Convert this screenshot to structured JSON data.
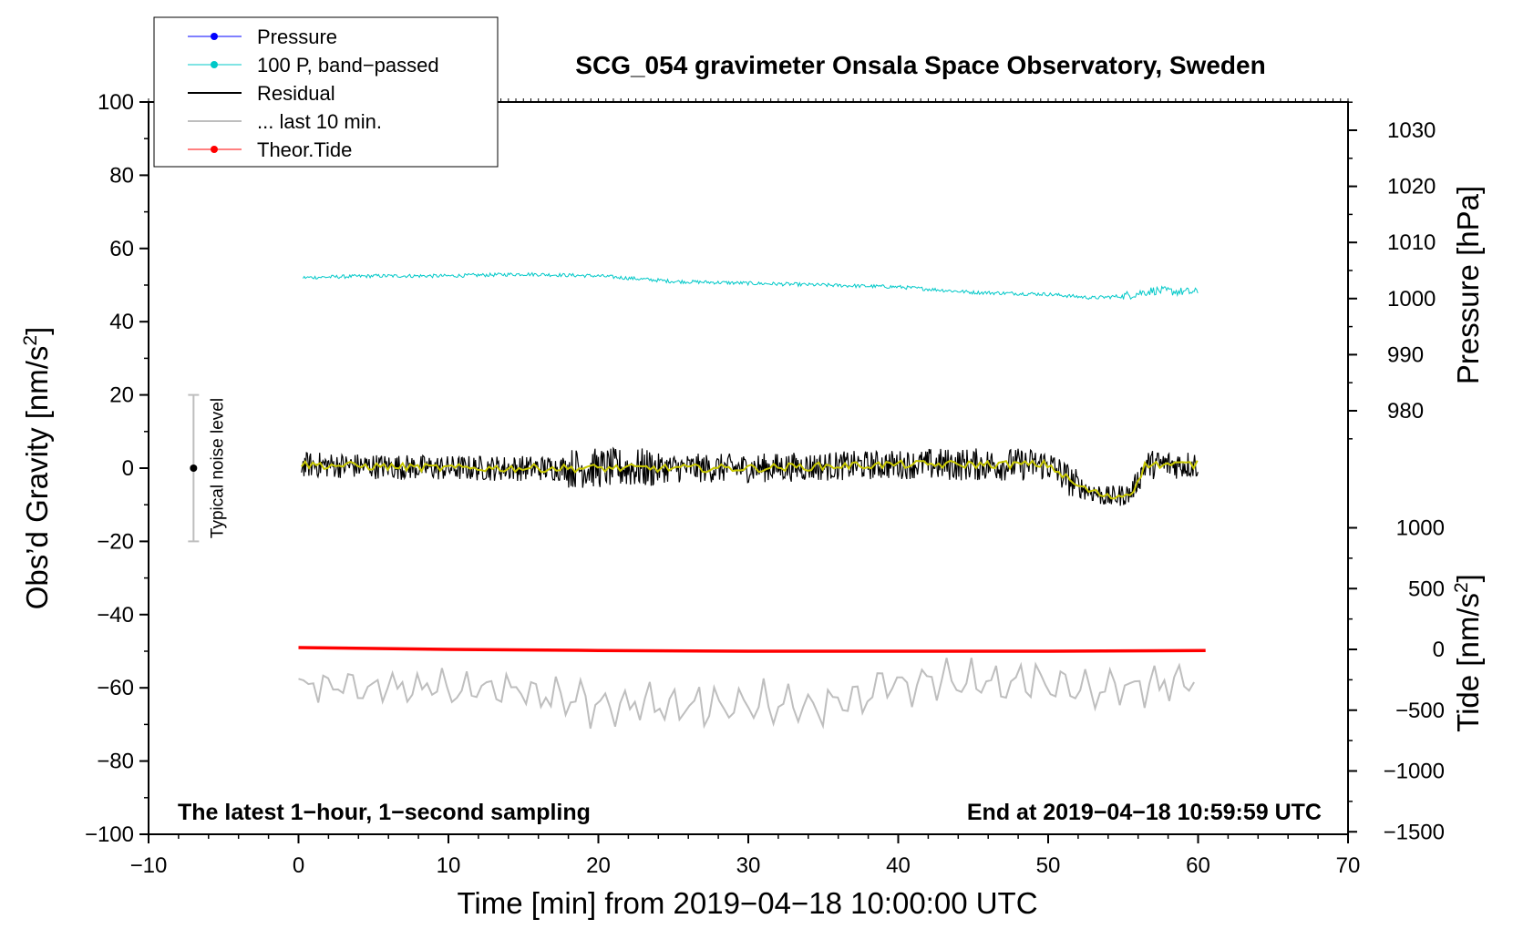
{
  "chart_data": {
    "type": "line",
    "title": "SCG_054 gravimeter Onsala Space Observatory, Sweden",
    "xlabel": "Time [min] from 2019−04−18 10:00:00 UTC",
    "ylabel_left": "Obs’d Gravity [nm/s",
    "ylabel_left_sup": "2",
    "ylabel_left_close": "]",
    "ylabel_right_pressure": "Pressure [hPa]",
    "ylabel_right_tide": "Tide [nm/s",
    "ylabel_right_tide_sup": "2",
    "ylabel_right_tide_close": "]",
    "xlim": [
      -10,
      70
    ],
    "ylim": [
      -100,
      100
    ],
    "x_ticks": [
      "−10",
      "0",
      "10",
      "20",
      "30",
      "40",
      "50",
      "60",
      "70"
    ],
    "x_tick_values": [
      -10,
      0,
      10,
      20,
      30,
      40,
      50,
      60,
      70
    ],
    "y_ticks": [
      "100",
      "80",
      "60",
      "40",
      "20",
      "0",
      "−20",
      "−40",
      "−60",
      "−80",
      "−100"
    ],
    "y_tick_values": [
      100,
      80,
      60,
      40,
      20,
      0,
      -20,
      -40,
      -60,
      -80,
      -100
    ],
    "pressure_ticks": [
      "1030",
      "1020",
      "1010",
      "1000",
      "990",
      "980"
    ],
    "pressure_tick_values": [
      1030,
      1020,
      1010,
      1000,
      990,
      980
    ],
    "tide_ticks": [
      "1000",
      "500",
      "0",
      "−500",
      "−1000",
      "−1500"
    ],
    "tide_tick_values": [
      1000,
      500,
      0,
      -500,
      -1000,
      -1500
    ],
    "legend": [
      {
        "label": "Pressure",
        "color": "#0000ff",
        "marker": true
      },
      {
        "label": "100 P, band−passed",
        "color": "#00c8c8",
        "marker": true
      },
      {
        "label": "Residual",
        "color": "#000000",
        "marker": false
      },
      {
        "label": "... last 10 min.",
        "color": "#bebebe",
        "marker": false
      },
      {
        "label": "Theor.Tide",
        "color": "#ff0000",
        "marker": true
      }
    ],
    "annotation_left": "The latest 1−hour, 1−second sampling",
    "annotation_right": "End at 2019−04−18 10:59:59 UTC",
    "noise_label": "Typical noise level",
    "noise_range": [
      -20,
      20
    ],
    "noise_x": -7,
    "series": [
      {
        "name": "100 P, band-passed",
        "color": "#00c8c8",
        "x": [
          0,
          5,
          10,
          15,
          20,
          25,
          30,
          35,
          40,
          45,
          50,
          53,
          55,
          57,
          60
        ],
        "y": [
          52,
          52.5,
          52.5,
          53,
          52.5,
          51,
          50.5,
          50,
          49.5,
          48,
          47.5,
          46.5,
          47,
          48.5,
          48
        ]
      },
      {
        "name": "Residual",
        "color": "#000000",
        "x": [
          0,
          10,
          20,
          30,
          40,
          50,
          52,
          54,
          55.5,
          56.5,
          60
        ],
        "y": [
          1,
          0,
          0,
          0,
          1,
          1,
          -5,
          -8,
          -7,
          1,
          1
        ],
        "amplitude_minutes": [
          [
            0,
            18,
            3.5
          ],
          [
            18,
            24,
            5.5
          ],
          [
            24,
            42,
            4
          ],
          [
            42,
            52,
            4.5
          ],
          [
            52,
            56,
            3
          ],
          [
            56,
            60,
            4
          ]
        ]
      },
      {
        "name": "Residual smoothed",
        "color": "#c8c800",
        "x": [
          0,
          10,
          20,
          30,
          40,
          50,
          52,
          54,
          55.5,
          56.5,
          60
        ],
        "y": [
          1,
          0,
          0,
          0,
          1,
          1,
          -5,
          -8,
          -7,
          1,
          1
        ]
      },
      {
        "name": "... last 10 min.",
        "color": "#bebebe",
        "x": [
          0,
          5,
          10,
          15,
          20,
          25,
          30,
          35,
          37,
          40,
          45,
          50,
          55,
          60
        ],
        "y": [
          -60,
          -60,
          -60,
          -61,
          -64,
          -65,
          -65,
          -65,
          -63,
          -59,
          -58,
          -59,
          -60,
          -58
        ]
      },
      {
        "name": "Theor.Tide",
        "color": "#ff0000",
        "x": [
          0,
          10,
          20,
          30,
          40,
          50,
          60.5
        ],
        "y": [
          -49,
          -49.5,
          -49.8,
          -50,
          -50,
          -50,
          -49.8
        ]
      }
    ]
  }
}
